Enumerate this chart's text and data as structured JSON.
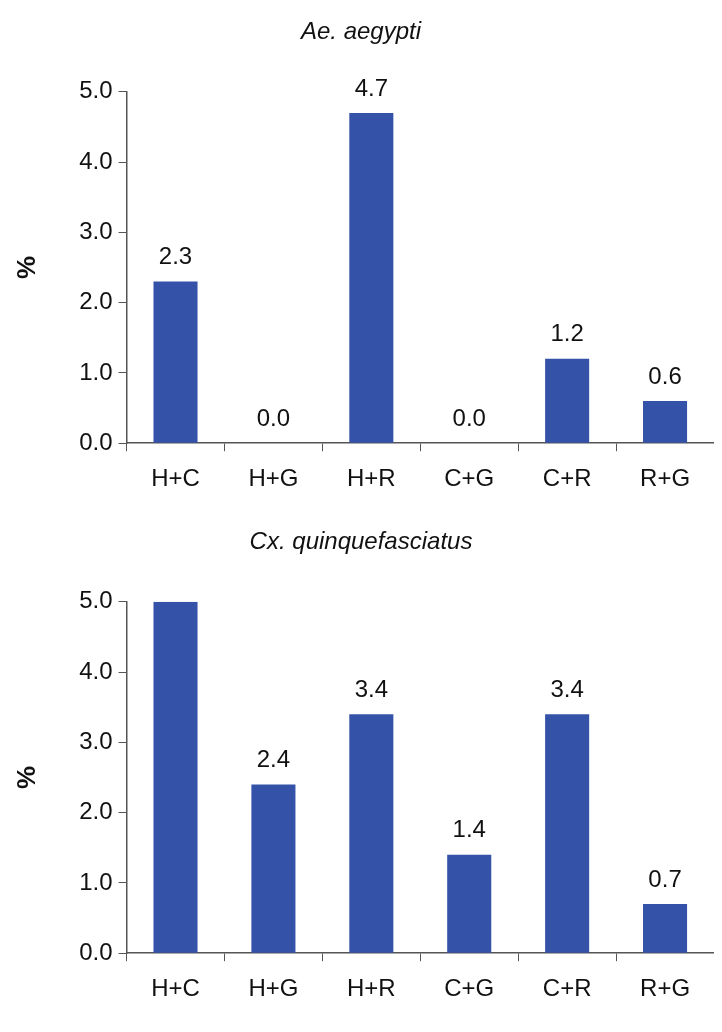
{
  "chart_data": [
    {
      "type": "bar",
      "title": "Ae. aegypti",
      "ylabel": "%",
      "categories": [
        "H+C",
        "H+G",
        "H+R",
        "C+G",
        "C+R",
        "R+G"
      ],
      "values": [
        2.3,
        0.0,
        4.7,
        0.0,
        1.2,
        0.6
      ],
      "value_labels": [
        "2.3",
        "0.0",
        "4.7",
        "0.0",
        "1.2",
        "0.6"
      ],
      "color": "#3452a8",
      "ylim": [
        0,
        5
      ],
      "yticks": [
        {
          "value": 0,
          "label": "0.0"
        },
        {
          "value": 1,
          "label": "1.0"
        },
        {
          "value": 2,
          "label": "2.0"
        },
        {
          "value": 3,
          "label": "3.0"
        },
        {
          "value": 4,
          "label": "4.0"
        },
        {
          "value": 5,
          "label": "5.0"
        }
      ]
    },
    {
      "type": "bar",
      "title": "Cx. quinquefasciatus",
      "ylabel": "%",
      "categories": [
        "H+C",
        "H+G",
        "H+R",
        "C+G",
        "C+R",
        "R+G"
      ],
      "values": [
        5.0,
        2.4,
        3.4,
        1.4,
        3.4,
        0.7
      ],
      "value_labels": [
        null,
        "2.4",
        "3.4",
        "1.4",
        "3.4",
        "0.7"
      ],
      "color": "#3452a8",
      "ylim": [
        0,
        5
      ],
      "yticks": [
        {
          "value": 0,
          "label": "0.0"
        },
        {
          "value": 1,
          "label": "1.0"
        },
        {
          "value": 2,
          "label": "2.0"
        },
        {
          "value": 3,
          "label": "3.0"
        },
        {
          "value": 4,
          "label": "4.0"
        },
        {
          "value": 5,
          "label": "5.0"
        }
      ]
    }
  ]
}
